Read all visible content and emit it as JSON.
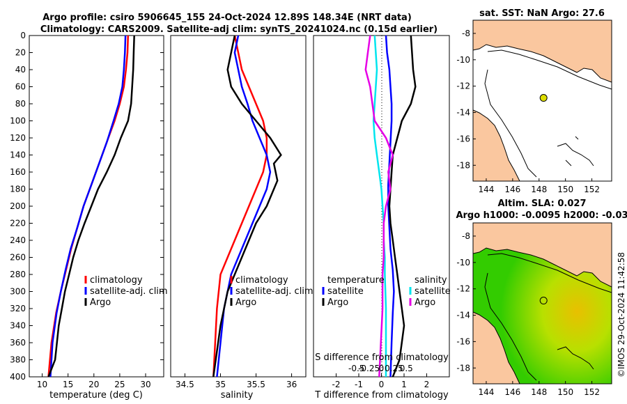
{
  "header": {
    "title_line1": "Argo profile: csiro 5906645_155 24-Oct-2024 12.89S 148.34E (NRT data)",
    "title_line2": "Climatology: CARS2009. Satellite-adj clim: synTS_20241024.nc (0.15d earlier)"
  },
  "colors": {
    "climatology": "#ff0000",
    "satellite": "#0000ff",
    "argo": "#000000",
    "salinity_satellite": "#00e5ee",
    "salinity_argo": "#e600e6",
    "land": "#fac79f",
    "sla_ocean": "#33cc00",
    "marker": "#dddd00"
  },
  "footer": {
    "credit": "©IMOS 29-Oct-2024 11:42:58"
  },
  "chart_data": [
    {
      "type": "line",
      "panel": "temperature",
      "xlabel": "temperature (deg C)",
      "ylabel": "",
      "xlim": [
        7.5,
        33.5
      ],
      "ylim": [
        400,
        0
      ],
      "xticks": [
        10,
        15,
        20,
        25,
        30
      ],
      "yticks": [
        0,
        20,
        40,
        60,
        80,
        100,
        120,
        140,
        160,
        180,
        200,
        220,
        240,
        260,
        280,
        300,
        320,
        340,
        360,
        380,
        400
      ],
      "legend": {
        "position": "right",
        "labels": [
          "climatology",
          "satellite-adj. clim",
          "Argo"
        ]
      },
      "series": [
        {
          "name": "climatology",
          "color": "#ff0000",
          "x": [
            26.6,
            26.5,
            26.2,
            25.8,
            25.0,
            24.0,
            22.5,
            21.0,
            19.5,
            18.0,
            16.8,
            15.6,
            14.6,
            13.6,
            12.7,
            11.8,
            11.2
          ],
          "y": [
            0,
            20,
            40,
            60,
            80,
            100,
            125,
            150,
            175,
            200,
            225,
            250,
            275,
            300,
            325,
            360,
            400
          ]
        },
        {
          "name": "satellite-adj. clim",
          "color": "#0000ff",
          "x": [
            26.1,
            26.0,
            25.8,
            25.5,
            24.8,
            23.8,
            22.5,
            21.0,
            19.5,
            18.0,
            16.8,
            15.5,
            14.5,
            13.6,
            12.8,
            12.0,
            11.6
          ],
          "y": [
            0,
            20,
            40,
            60,
            80,
            100,
            125,
            150,
            175,
            200,
            225,
            250,
            275,
            300,
            325,
            360,
            400
          ]
        },
        {
          "name": "Argo",
          "color": "#000000",
          "x": [
            27.8,
            27.7,
            27.6,
            27.4,
            27.2,
            26.6,
            25.2,
            24.0,
            22.5,
            20.8,
            19.5,
            18.2,
            17.0,
            16.0,
            15.2,
            14.4,
            13.8,
            13.2,
            12.5,
            11.2
          ],
          "y": [
            0,
            20,
            40,
            60,
            80,
            100,
            120,
            140,
            160,
            180,
            200,
            220,
            240,
            260,
            280,
            300,
            320,
            340,
            380,
            400
          ]
        }
      ]
    },
    {
      "type": "line",
      "panel": "salinity",
      "xlabel": "salinity",
      "ylabel": "",
      "xlim": [
        34.3,
        36.2
      ],
      "ylim": [
        400,
        0
      ],
      "xticks": [
        34.5,
        35,
        35.5,
        36
      ],
      "legend": {
        "position": "right",
        "labels": [
          "climatology",
          "satellite-adj. clim",
          "Argo"
        ]
      },
      "series": [
        {
          "name": "climatology",
          "color": "#ff0000",
          "x": [
            35.2,
            35.25,
            35.3,
            35.4,
            35.5,
            35.6,
            35.65,
            35.65,
            35.6,
            35.5,
            35.4,
            35.3,
            35.2,
            35.1,
            35.0,
            34.95,
            34.9
          ],
          "y": [
            0,
            20,
            40,
            60,
            80,
            100,
            120,
            140,
            160,
            180,
            200,
            220,
            240,
            260,
            280,
            320,
            400
          ]
        },
        {
          "name": "satellite-adj. clim",
          "color": "#0000ff",
          "x": [
            35.25,
            35.2,
            35.25,
            35.3,
            35.38,
            35.45,
            35.55,
            35.65,
            35.7,
            35.65,
            35.55,
            35.45,
            35.35,
            35.25,
            35.15,
            35.05,
            34.95
          ],
          "y": [
            0,
            20,
            40,
            60,
            80,
            100,
            120,
            140,
            160,
            180,
            200,
            220,
            240,
            260,
            280,
            320,
            400
          ]
        },
        {
          "name": "Argo",
          "color": "#000000",
          "x": [
            35.2,
            35.15,
            35.1,
            35.15,
            35.3,
            35.5,
            35.7,
            35.85,
            35.75,
            35.8,
            35.65,
            35.5,
            35.4,
            35.3,
            35.2,
            35.1,
            35.0,
            34.9
          ],
          "y": [
            0,
            20,
            40,
            60,
            80,
            100,
            120,
            140,
            150,
            170,
            200,
            220,
            240,
            260,
            280,
            300,
            340,
            400
          ]
        }
      ]
    },
    {
      "type": "line",
      "panel": "differences",
      "xlabel": "T difference from climatology",
      "xlabel_top": "S difference from climatology",
      "xlim": [
        -3,
        3
      ],
      "ylim": [
        400,
        0
      ],
      "xticks": [
        -2,
        -1,
        0,
        1,
        2
      ],
      "xtick_labels_salinity": [
        "-0.5",
        "-0.25",
        "0",
        "0.25",
        "0.5"
      ],
      "legend_temperature": {
        "title": "temperature",
        "labels": [
          "satellite",
          "Argo"
        ]
      },
      "legend_salinity": {
        "title": "salinity",
        "labels": [
          "satellite",
          "Argo"
        ]
      },
      "series": [
        {
          "name": "temperature satellite",
          "color": "#0000ff",
          "x": [
            0.2,
            0.25,
            0.35,
            0.4,
            0.45,
            0.45,
            0.4,
            0.35,
            0.3,
            0.3,
            0.35,
            0.4,
            0.5,
            0.55,
            0.5,
            0.45,
            0.4
          ],
          "y": [
            0,
            20,
            40,
            60,
            80,
            100,
            125,
            150,
            175,
            200,
            225,
            250,
            275,
            300,
            325,
            360,
            400
          ]
        },
        {
          "name": "temperature Argo",
          "color": "#000000",
          "x": [
            1.3,
            1.35,
            1.4,
            1.5,
            1.3,
            0.9,
            0.7,
            0.5,
            0.45,
            0.4,
            0.35,
            0.4,
            0.5,
            0.6,
            0.7,
            0.8,
            0.9,
            1.0,
            0.8,
            0.5
          ],
          "y": [
            0,
            20,
            40,
            60,
            80,
            100,
            120,
            140,
            160,
            180,
            200,
            220,
            240,
            260,
            280,
            300,
            320,
            340,
            380,
            400
          ]
        },
        {
          "name": "salinity satellite",
          "color": "#00e5ee",
          "x": [
            -0.3,
            -0.25,
            -0.2,
            -0.25,
            -0.3,
            -0.35,
            -0.3,
            -0.2,
            -0.1,
            0.0,
            0.05,
            0.1,
            0.1,
            0.15,
            0.15,
            0.2,
            0.2
          ],
          "y": [
            0,
            20,
            40,
            60,
            80,
            100,
            120,
            140,
            160,
            180,
            200,
            220,
            240,
            260,
            280,
            320,
            400
          ]
        },
        {
          "name": "salinity Argo",
          "color": "#e600e6",
          "x": [
            -0.5,
            -0.6,
            -0.7,
            -0.5,
            -0.4,
            -0.3,
            0.2,
            0.5,
            0.3,
            0.4,
            0.2,
            0.1,
            0.1,
            0.1,
            0.05,
            0.05,
            -0.1
          ],
          "y": [
            0,
            20,
            40,
            60,
            80,
            100,
            120,
            140,
            160,
            180,
            200,
            220,
            240,
            260,
            280,
            320,
            400
          ]
        }
      ]
    },
    {
      "type": "map",
      "panel": "sst_map",
      "title": "sat. SST: NaN Argo: 27.6",
      "xlim": [
        143,
        153.5
      ],
      "ylim": [
        -19.2,
        -7
      ],
      "xticks": [
        144,
        146,
        148,
        150,
        152
      ],
      "yticks": [
        -8,
        -10,
        -12,
        -14,
        -16,
        -18
      ],
      "marker": {
        "lon": 148.34,
        "lat": -12.89
      }
    },
    {
      "type": "map",
      "panel": "sla_map",
      "title_line1": "Altim. SLA: 0.027",
      "title_line2": "Argo h1000: -0.0095 h2000: -0.03",
      "xlim": [
        143,
        153.5
      ],
      "ylim": [
        -19.2,
        -7
      ],
      "xticks": [
        144,
        146,
        148,
        150,
        152
      ],
      "yticks": [
        -8,
        -10,
        -12,
        -14,
        -16,
        -18
      ],
      "marker": {
        "lon": 148.34,
        "lat": -12.89
      }
    }
  ]
}
